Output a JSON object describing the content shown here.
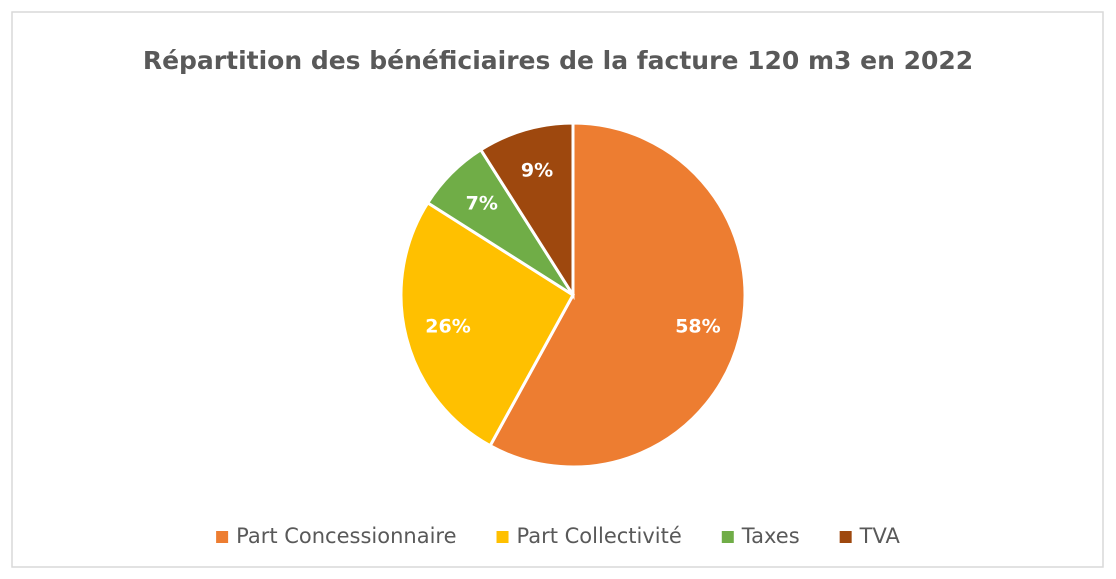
{
  "chart_data": {
    "type": "pie",
    "title": "Répartition des bénéficiaires de la facture 120 m3 en 2022",
    "categories": [
      "Part Concessionnaire",
      "Part Collectivité",
      "Taxes",
      "TVA"
    ],
    "values": [
      58,
      26,
      7,
      9
    ],
    "value_labels": [
      "58%",
      "26%",
      "7%",
      "9%"
    ],
    "colors": [
      "#ED7D31",
      "#FFC000",
      "#70AD47",
      "#9E480E"
    ],
    "legend": "bottom"
  }
}
